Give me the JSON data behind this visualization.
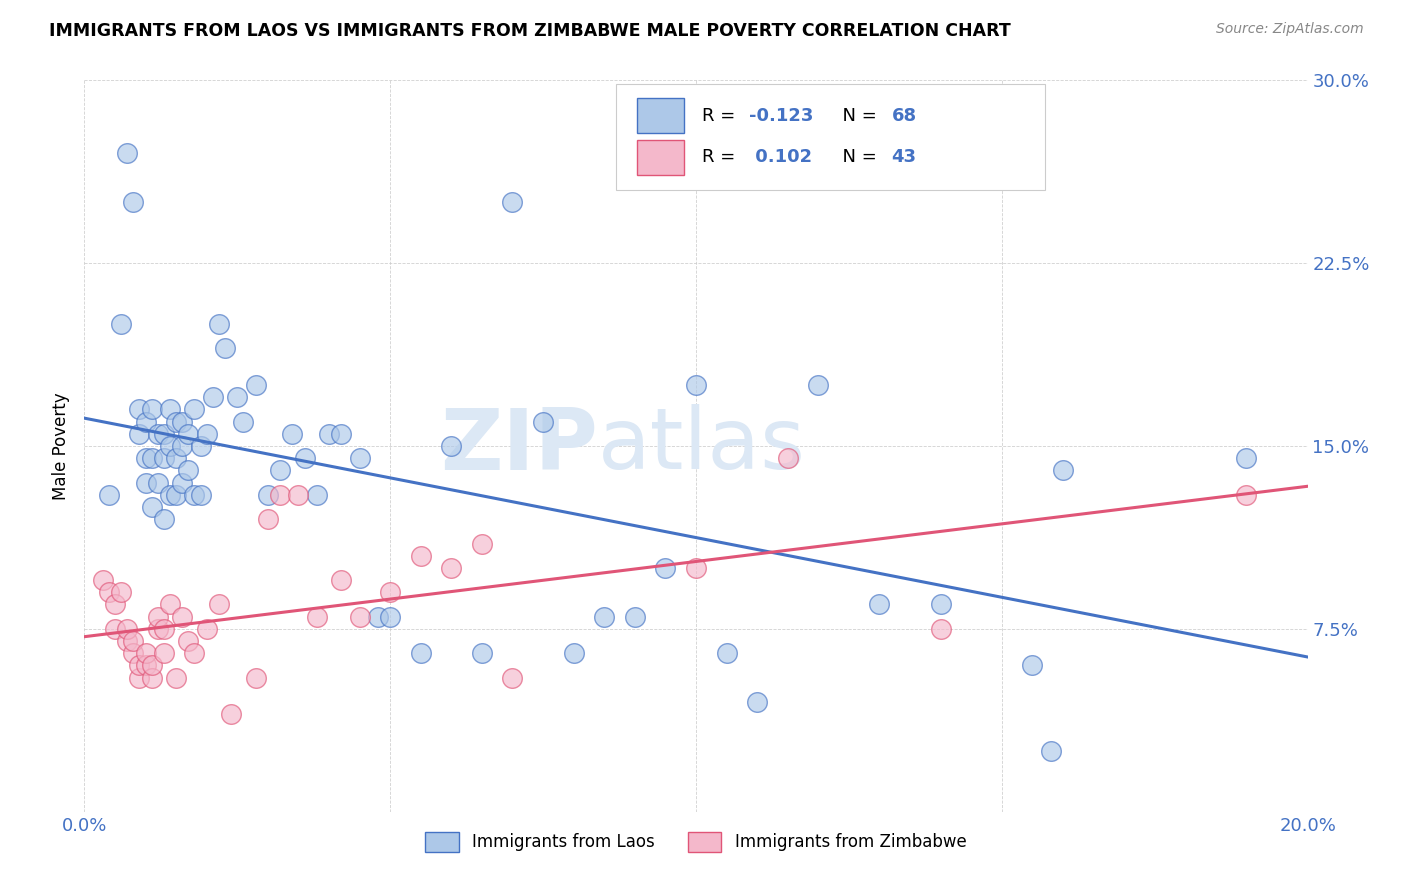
{
  "title": "IMMIGRANTS FROM LAOS VS IMMIGRANTS FROM ZIMBABWE MALE POVERTY CORRELATION CHART",
  "source": "Source: ZipAtlas.com",
  "ylabel": "Male Poverty",
  "x_min": 0.0,
  "x_max": 0.2,
  "y_min": 0.0,
  "y_max": 0.3,
  "x_ticks": [
    0.0,
    0.05,
    0.1,
    0.15,
    0.2
  ],
  "y_ticks": [
    0.0,
    0.075,
    0.15,
    0.225,
    0.3
  ],
  "y_tick_labels": [
    "",
    "7.5%",
    "15.0%",
    "22.5%",
    "30.0%"
  ],
  "laos_color": "#adc8e8",
  "zimbabwe_color": "#f4b8cb",
  "laos_line_color": "#4472c4",
  "zimbabwe_line_color": "#e05577",
  "laos_R": "-0.123",
  "laos_N": "68",
  "zimbabwe_R": "0.102",
  "zimbabwe_N": "43",
  "legend_label_laos": "Immigrants from Laos",
  "legend_label_zimbabwe": "Immigrants from Zimbabwe",
  "watermark_zip": "ZIP",
  "watermark_atlas": "atlas",
  "tick_color": "#4472c4",
  "laos_x": [
    0.004,
    0.006,
    0.007,
    0.008,
    0.009,
    0.009,
    0.01,
    0.01,
    0.01,
    0.011,
    0.011,
    0.011,
    0.012,
    0.012,
    0.013,
    0.013,
    0.013,
    0.014,
    0.014,
    0.014,
    0.015,
    0.015,
    0.015,
    0.016,
    0.016,
    0.016,
    0.017,
    0.017,
    0.018,
    0.018,
    0.019,
    0.019,
    0.02,
    0.021,
    0.022,
    0.023,
    0.025,
    0.026,
    0.028,
    0.03,
    0.032,
    0.034,
    0.036,
    0.038,
    0.04,
    0.042,
    0.045,
    0.048,
    0.05,
    0.055,
    0.06,
    0.065,
    0.07,
    0.075,
    0.08,
    0.085,
    0.09,
    0.095,
    0.1,
    0.105,
    0.11,
    0.12,
    0.13,
    0.14,
    0.155,
    0.158,
    0.16,
    0.19
  ],
  "laos_y": [
    0.13,
    0.2,
    0.27,
    0.25,
    0.155,
    0.165,
    0.135,
    0.145,
    0.16,
    0.125,
    0.145,
    0.165,
    0.135,
    0.155,
    0.12,
    0.145,
    0.155,
    0.13,
    0.15,
    0.165,
    0.13,
    0.145,
    0.16,
    0.135,
    0.15,
    0.16,
    0.14,
    0.155,
    0.13,
    0.165,
    0.13,
    0.15,
    0.155,
    0.17,
    0.2,
    0.19,
    0.17,
    0.16,
    0.175,
    0.13,
    0.14,
    0.155,
    0.145,
    0.13,
    0.155,
    0.155,
    0.145,
    0.08,
    0.08,
    0.065,
    0.15,
    0.065,
    0.25,
    0.16,
    0.065,
    0.08,
    0.08,
    0.1,
    0.175,
    0.065,
    0.045,
    0.175,
    0.085,
    0.085,
    0.06,
    0.025,
    0.14,
    0.145
  ],
  "zimbabwe_x": [
    0.003,
    0.004,
    0.005,
    0.005,
    0.006,
    0.007,
    0.007,
    0.008,
    0.008,
    0.009,
    0.009,
    0.01,
    0.01,
    0.011,
    0.011,
    0.012,
    0.012,
    0.013,
    0.013,
    0.014,
    0.015,
    0.016,
    0.017,
    0.018,
    0.02,
    0.022,
    0.024,
    0.028,
    0.03,
    0.032,
    0.035,
    0.038,
    0.042,
    0.045,
    0.05,
    0.055,
    0.06,
    0.065,
    0.07,
    0.1,
    0.115,
    0.14,
    0.19
  ],
  "zimbabwe_y": [
    0.095,
    0.09,
    0.075,
    0.085,
    0.09,
    0.07,
    0.075,
    0.065,
    0.07,
    0.055,
    0.06,
    0.06,
    0.065,
    0.055,
    0.06,
    0.075,
    0.08,
    0.065,
    0.075,
    0.085,
    0.055,
    0.08,
    0.07,
    0.065,
    0.075,
    0.085,
    0.04,
    0.055,
    0.12,
    0.13,
    0.13,
    0.08,
    0.095,
    0.08,
    0.09,
    0.105,
    0.1,
    0.11,
    0.055,
    0.1,
    0.145,
    0.075,
    0.13
  ]
}
